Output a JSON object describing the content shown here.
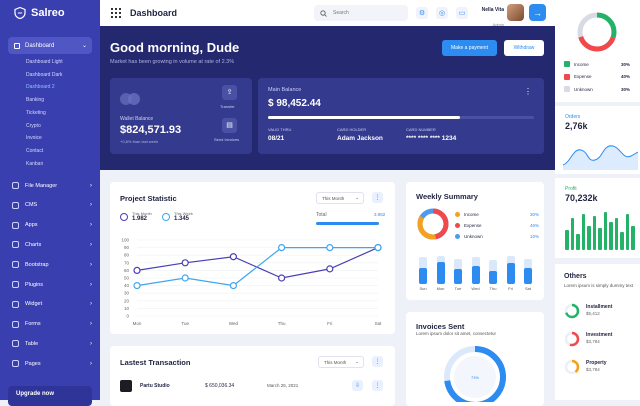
{
  "brand": "Salreo",
  "sidebar": {
    "section": "Dashboard",
    "sub": [
      "Dashboard Light",
      "Dashboard Dark",
      "Dashboard 2",
      "Banking",
      "Ticketing",
      "Crypto",
      "Invoice",
      "Contact",
      "Kanban"
    ],
    "nav": [
      "File Manager",
      "CMS",
      "Apps",
      "Charts",
      "Bootstrap",
      "Plugins",
      "Widget",
      "Forms",
      "Table",
      "Pages"
    ],
    "upgrade": "Upgrade now"
  },
  "topbar": {
    "title": "Dashboard",
    "search_placeholder": "Search",
    "user_name": "Nella Vita",
    "user_role": "Admin"
  },
  "hero": {
    "greeting": "Good morning, Dude",
    "subtitle": "Market has been growing in volume at rate of 2.3%",
    "pay_btn": "Make a payment",
    "withdraw_btn": "Withdraw",
    "wallet": {
      "label": "Wallet Balance",
      "amount": "$824,571.93",
      "change": "+0,8% than last week",
      "transfer": "Transfer",
      "invoices": "Send Invoices"
    },
    "main": {
      "label": "Main Balance",
      "amount": "$ 98,452.44",
      "valid_label": "VALID THRU",
      "valid": "08/21",
      "holder_label": "CARD HOLDER",
      "holder": "Adam Jackson",
      "number_label": "CARD NUMBER",
      "number": "**** **** **** 1234",
      "progress": 0.72
    }
  },
  "project": {
    "title": "Project Statistic",
    "filter": "This Month",
    "this_month_label": "This Month",
    "this_month": "1.982",
    "this_week_label": "This Week",
    "this_week": "1.345",
    "total_label": "Total",
    "total": "3.982"
  },
  "chart_data": {
    "type": "line",
    "categories": [
      "Mon",
      "Tue",
      "Wed",
      "Thu",
      "Fri",
      "Sat"
    ],
    "ylim": [
      0,
      100
    ],
    "yticks": [
      0,
      10,
      20,
      30,
      40,
      50,
      60,
      70,
      80,
      90,
      100
    ],
    "series": [
      {
        "values": [
          60,
          70,
          78,
          50,
          62,
          90
        ],
        "color": "#4b3fb5"
      },
      {
        "values": [
          40,
          50,
          40,
          90,
          90,
          90
        ],
        "color": "#3fa5ee"
      }
    ]
  },
  "weekly": {
    "title": "Weekly Summary",
    "legend": [
      {
        "name": "Income",
        "value": "30%",
        "color": "#f5a020"
      },
      {
        "name": "Expense",
        "value": "46%",
        "color": "#f0484b"
      },
      {
        "name": "Unknown",
        "value": "10%",
        "color": "#4c9bf0"
      }
    ],
    "bars": [
      {
        "day": "Sun",
        "dark": 0.55,
        "light": 0.9
      },
      {
        "day": "Mon",
        "dark": 0.75,
        "light": 0.95
      },
      {
        "day": "Tue",
        "dark": 0.5,
        "light": 0.85
      },
      {
        "day": "Wed",
        "dark": 0.6,
        "light": 0.9
      },
      {
        "day": "Thu",
        "dark": 0.45,
        "light": 0.8
      },
      {
        "day": "Fri",
        "dark": 0.7,
        "light": 0.95
      },
      {
        "day": "Sat",
        "dark": 0.55,
        "light": 0.85
      }
    ]
  },
  "transactions": {
    "title": "Lastest Transaction",
    "filter": "This Month",
    "row": {
      "name": "Partu Studio",
      "amount": "$ 650,036.34",
      "date": "March 25, 2021"
    }
  },
  "invoices": {
    "title": "Invoices Sent",
    "subtitle": "Lorem ipsum dolor sit amet, consectetur",
    "center": "73%"
  },
  "right": {
    "donut": {
      "legend": [
        {
          "name": "Income",
          "value": "30%",
          "color": "#23b268"
        },
        {
          "name": "Expense",
          "value": "40%",
          "color": "#f0484b"
        },
        {
          "name": "Unknown",
          "value": "30%",
          "color": "#d8dbe6"
        }
      ]
    },
    "orders": {
      "label": "Orders",
      "value": "2,76k"
    },
    "profit": {
      "label": "Profit",
      "value": "70,232k",
      "bars": [
        0.5,
        0.8,
        0.4,
        0.9,
        0.6,
        0.85,
        0.55,
        0.95,
        0.7,
        0.8,
        0.45,
        0.9,
        0.6
      ]
    },
    "others": {
      "title": "Others",
      "subtitle": "Lorem ipsum is simply dummy text",
      "items": [
        {
          "name": "Installment",
          "value": "$5,412",
          "color": "#23b268",
          "pct": 0.7
        },
        {
          "name": "Investment",
          "value": "$3,784",
          "color": "#f0484b",
          "pct": 0.55
        },
        {
          "name": "Property",
          "value": "$3,784",
          "color": "#f5a020",
          "pct": 0.4
        }
      ]
    }
  }
}
